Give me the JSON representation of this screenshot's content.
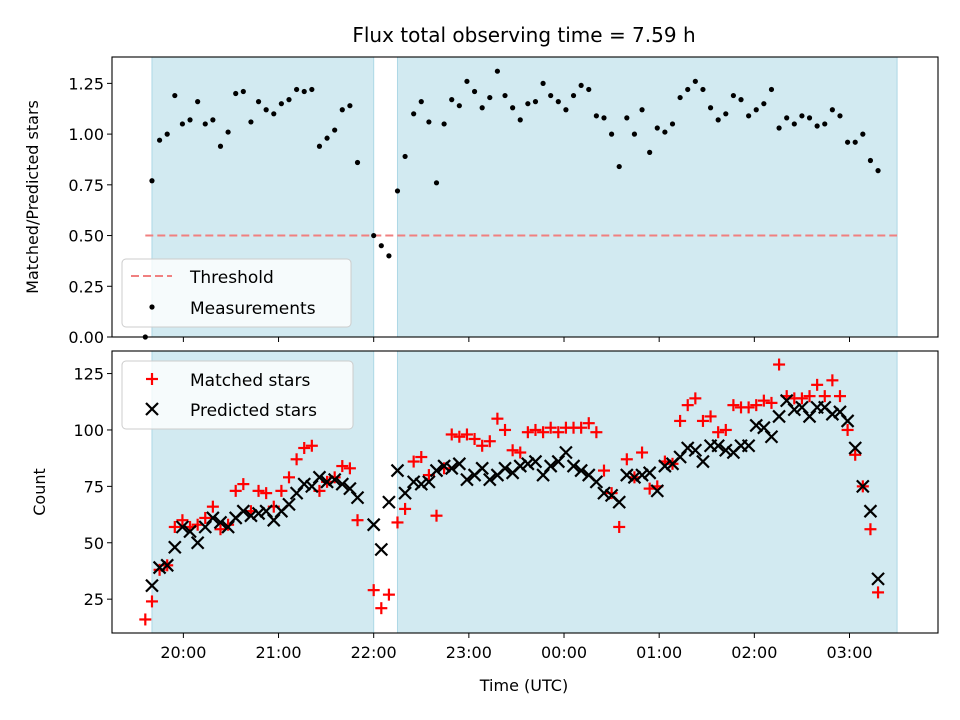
{
  "chart_data": {
    "title": "Flux total observing time = 7.59 h",
    "xlabel": "Time (UTC)",
    "x_ticks": [
      "20:00",
      "21:00",
      "22:00",
      "23:00",
      "00:00",
      "01:00",
      "02:00",
      "03:00"
    ],
    "x_tick_hours": [
      20,
      21,
      22,
      23,
      24,
      25,
      26,
      27
    ],
    "xlim_hours": [
      19.25,
      27.93
    ],
    "observing_windows_hours": [
      [
        19.67,
        22.0
      ],
      [
        22.25,
        27.5
      ]
    ],
    "window_color": "#add8e6",
    "top": {
      "type": "scatter",
      "ylabel": "Matched/Predicted stars",
      "ylim": [
        0,
        1.38
      ],
      "y_ticks": [
        0.0,
        0.25,
        0.5,
        0.75,
        1.0,
        1.25
      ],
      "y_tick_labels": [
        "0.00",
        "0.25",
        "0.50",
        "0.75",
        "1.00",
        "1.25"
      ],
      "threshold": {
        "name": "Threshold",
        "value": 0.5,
        "x_range_hours": [
          19.6,
          27.5
        ],
        "color": "#f08080"
      },
      "measurements_name": "Measurements",
      "measurements_color": "#000000",
      "measurements": [
        [
          19.6,
          0.0
        ],
        [
          19.67,
          0.77
        ],
        [
          19.75,
          0.97
        ],
        [
          19.83,
          1.0
        ],
        [
          19.91,
          1.19
        ],
        [
          19.99,
          1.05
        ],
        [
          20.07,
          1.07
        ],
        [
          20.15,
          1.16
        ],
        [
          20.23,
          1.05
        ],
        [
          20.31,
          1.07
        ],
        [
          20.39,
          0.94
        ],
        [
          20.47,
          1.01
        ],
        [
          20.55,
          1.2
        ],
        [
          20.63,
          1.21
        ],
        [
          20.71,
          1.06
        ],
        [
          20.79,
          1.16
        ],
        [
          20.87,
          1.12
        ],
        [
          20.95,
          1.1
        ],
        [
          21.03,
          1.15
        ],
        [
          21.11,
          1.17
        ],
        [
          21.19,
          1.22
        ],
        [
          21.27,
          1.21
        ],
        [
          21.35,
          1.22
        ],
        [
          21.43,
          0.94
        ],
        [
          21.51,
          0.98
        ],
        [
          21.59,
          1.02
        ],
        [
          21.67,
          1.12
        ],
        [
          21.75,
          1.14
        ],
        [
          21.83,
          0.86
        ],
        [
          22.0,
          0.5
        ],
        [
          22.08,
          0.45
        ],
        [
          22.16,
          0.4
        ],
        [
          22.25,
          0.72
        ],
        [
          22.33,
          0.89
        ],
        [
          22.42,
          1.1
        ],
        [
          22.5,
          1.16
        ],
        [
          22.58,
          1.06
        ],
        [
          22.66,
          0.76
        ],
        [
          22.74,
          1.05
        ],
        [
          22.82,
          1.17
        ],
        [
          22.9,
          1.14
        ],
        [
          22.98,
          1.26
        ],
        [
          23.06,
          1.21
        ],
        [
          23.14,
          1.13
        ],
        [
          23.22,
          1.18
        ],
        [
          23.3,
          1.31
        ],
        [
          23.38,
          1.19
        ],
        [
          23.46,
          1.13
        ],
        [
          23.54,
          1.07
        ],
        [
          23.62,
          1.15
        ],
        [
          23.7,
          1.16
        ],
        [
          23.78,
          1.25
        ],
        [
          23.86,
          1.19
        ],
        [
          23.94,
          1.16
        ],
        [
          24.02,
          1.12
        ],
        [
          24.1,
          1.19
        ],
        [
          24.18,
          1.24
        ],
        [
          24.26,
          1.22
        ],
        [
          24.34,
          1.09
        ],
        [
          24.42,
          1.08
        ],
        [
          24.5,
          1.0
        ],
        [
          24.58,
          0.84
        ],
        [
          24.66,
          1.08
        ],
        [
          24.74,
          1.0
        ],
        [
          24.82,
          1.12
        ],
        [
          24.9,
          0.91
        ],
        [
          24.98,
          1.03
        ],
        [
          25.06,
          1.01
        ],
        [
          25.14,
          1.05
        ],
        [
          25.22,
          1.18
        ],
        [
          25.3,
          1.22
        ],
        [
          25.38,
          1.26
        ],
        [
          25.46,
          1.22
        ],
        [
          25.54,
          1.13
        ],
        [
          25.62,
          1.07
        ],
        [
          25.7,
          1.1
        ],
        [
          25.78,
          1.19
        ],
        [
          25.86,
          1.17
        ],
        [
          25.94,
          1.09
        ],
        [
          26.02,
          1.12
        ],
        [
          26.1,
          1.15
        ],
        [
          26.18,
          1.22
        ],
        [
          26.26,
          1.03
        ],
        [
          26.34,
          1.08
        ],
        [
          26.42,
          1.05
        ],
        [
          26.5,
          1.09
        ],
        [
          26.58,
          1.08
        ],
        [
          26.66,
          1.04
        ],
        [
          26.74,
          1.05
        ],
        [
          26.82,
          1.12
        ],
        [
          26.9,
          1.09
        ],
        [
          26.98,
          0.96
        ],
        [
          27.06,
          0.96
        ],
        [
          27.14,
          1.0
        ],
        [
          27.22,
          0.87
        ],
        [
          27.3,
          0.82
        ]
      ]
    },
    "bottom": {
      "type": "scatter",
      "ylabel": "Count",
      "ylim": [
        10,
        135
      ],
      "y_ticks": [
        25,
        50,
        75,
        100,
        125
      ],
      "y_tick_labels": [
        "25",
        "50",
        "75",
        "100",
        "125"
      ],
      "series": [
        {
          "name": "Matched stars",
          "marker": "plus",
          "color": "#ff0000",
          "points": [
            [
              19.6,
              16
            ],
            [
              19.67,
              24
            ],
            [
              19.75,
              38
            ],
            [
              19.83,
              40
            ],
            [
              19.91,
              57
            ],
            [
              19.99,
              60
            ],
            [
              20.07,
              57
            ],
            [
              20.15,
              58
            ],
            [
              20.23,
              61
            ],
            [
              20.31,
              66
            ],
            [
              20.39,
              56
            ],
            [
              20.47,
              58
            ],
            [
              20.55,
              73
            ],
            [
              20.63,
              76
            ],
            [
              20.71,
              64
            ],
            [
              20.79,
              73
            ],
            [
              20.87,
              72
            ],
            [
              20.95,
              66
            ],
            [
              21.03,
              73
            ],
            [
              21.11,
              79
            ],
            [
              21.19,
              87
            ],
            [
              21.27,
              92
            ],
            [
              21.35,
              93
            ],
            [
              21.43,
              73
            ],
            [
              21.51,
              77
            ],
            [
              21.59,
              79
            ],
            [
              21.67,
              84
            ],
            [
              21.75,
              83
            ],
            [
              21.83,
              60
            ],
            [
              22.0,
              29
            ],
            [
              22.08,
              21
            ],
            [
              22.16,
              27
            ],
            [
              22.25,
              59
            ],
            [
              22.33,
              65
            ],
            [
              22.42,
              86
            ],
            [
              22.5,
              88
            ],
            [
              22.58,
              80
            ],
            [
              22.66,
              62
            ],
            [
              22.74,
              83
            ],
            [
              22.82,
              98
            ],
            [
              22.9,
              97
            ],
            [
              22.98,
              98
            ],
            [
              23.06,
              96
            ],
            [
              23.14,
              93
            ],
            [
              23.22,
              95
            ],
            [
              23.3,
              105
            ],
            [
              23.38,
              100
            ],
            [
              23.46,
              91
            ],
            [
              23.54,
              90
            ],
            [
              23.62,
              99
            ],
            [
              23.7,
              100
            ],
            [
              23.78,
              99
            ],
            [
              23.86,
              101
            ],
            [
              23.94,
              99
            ],
            [
              24.02,
              101
            ],
            [
              24.1,
              101
            ],
            [
              24.18,
              101
            ],
            [
              24.26,
              103
            ],
            [
              24.34,
              99
            ],
            [
              24.42,
              82
            ],
            [
              24.5,
              72
            ],
            [
              24.58,
              57
            ],
            [
              24.66,
              87
            ],
            [
              24.74,
              79
            ],
            [
              24.82,
              90
            ],
            [
              24.9,
              74
            ],
            [
              24.98,
              75
            ],
            [
              25.06,
              86
            ],
            [
              25.14,
              85
            ],
            [
              25.22,
              104
            ],
            [
              25.3,
              111
            ],
            [
              25.38,
              114
            ],
            [
              25.46,
              104
            ],
            [
              25.54,
              106
            ],
            [
              25.62,
              99
            ],
            [
              25.7,
              100
            ],
            [
              25.78,
              111
            ],
            [
              25.86,
              110
            ],
            [
              25.94,
              110
            ],
            [
              26.02,
              111
            ],
            [
              26.1,
              113
            ],
            [
              26.18,
              112
            ],
            [
              26.26,
              129
            ],
            [
              26.34,
              115
            ],
            [
              26.42,
              114
            ],
            [
              26.5,
              114
            ],
            [
              26.58,
              115
            ],
            [
              26.66,
              120
            ],
            [
              26.74,
              115
            ],
            [
              26.82,
              122
            ],
            [
              26.9,
              115
            ],
            [
              26.98,
              100
            ],
            [
              27.06,
              89
            ],
            [
              27.14,
              75
            ],
            [
              27.22,
              56
            ],
            [
              27.3,
              28
            ]
          ]
        },
        {
          "name": "Predicted stars",
          "marker": "x",
          "color": "#000000",
          "points": [
            [
              19.67,
              31
            ],
            [
              19.75,
              39
            ],
            [
              19.83,
              40
            ],
            [
              19.91,
              48
            ],
            [
              19.99,
              57
            ],
            [
              20.07,
              55
            ],
            [
              20.15,
              50
            ],
            [
              20.23,
              57
            ],
            [
              20.31,
              61
            ],
            [
              20.39,
              59
            ],
            [
              20.47,
              57
            ],
            [
              20.55,
              61
            ],
            [
              20.63,
              64
            ],
            [
              20.71,
              62
            ],
            [
              20.79,
              63
            ],
            [
              20.87,
              64
            ],
            [
              20.95,
              60
            ],
            [
              21.03,
              64
            ],
            [
              21.11,
              67
            ],
            [
              21.19,
              72
            ],
            [
              21.27,
              76
            ],
            [
              21.35,
              75
            ],
            [
              21.43,
              79
            ],
            [
              21.51,
              77
            ],
            [
              21.59,
              78
            ],
            [
              21.67,
              76
            ],
            [
              21.75,
              74
            ],
            [
              21.83,
              70
            ],
            [
              22.0,
              58
            ],
            [
              22.08,
              47
            ],
            [
              22.16,
              68
            ],
            [
              22.25,
              82
            ],
            [
              22.33,
              72
            ],
            [
              22.42,
              77
            ],
            [
              22.5,
              76
            ],
            [
              22.58,
              77
            ],
            [
              22.66,
              82
            ],
            [
              22.74,
              84
            ],
            [
              22.82,
              83
            ],
            [
              22.9,
              85
            ],
            [
              22.98,
              78
            ],
            [
              23.06,
              80
            ],
            [
              23.14,
              83
            ],
            [
              23.22,
              78
            ],
            [
              23.3,
              80
            ],
            [
              23.38,
              83
            ],
            [
              23.46,
              81
            ],
            [
              23.54,
              84
            ],
            [
              23.62,
              85
            ],
            [
              23.7,
              86
            ],
            [
              23.78,
              80
            ],
            [
              23.86,
              84
            ],
            [
              23.94,
              86
            ],
            [
              24.02,
              90
            ],
            [
              24.1,
              84
            ],
            [
              24.18,
              82
            ],
            [
              24.26,
              80
            ],
            [
              24.34,
              77
            ],
            [
              24.42,
              72
            ],
            [
              24.5,
              71
            ],
            [
              24.58,
              68
            ],
            [
              24.66,
              80
            ],
            [
              24.74,
              79
            ],
            [
              24.82,
              80
            ],
            [
              24.9,
              81
            ],
            [
              24.98,
              73
            ],
            [
              25.06,
              84
            ],
            [
              25.14,
              85
            ],
            [
              25.22,
              88
            ],
            [
              25.3,
              92
            ],
            [
              25.38,
              91
            ],
            [
              25.46,
              86
            ],
            [
              25.54,
              93
            ],
            [
              25.62,
              93
            ],
            [
              25.7,
              91
            ],
            [
              25.78,
              90
            ],
            [
              25.86,
              93
            ],
            [
              25.94,
              93
            ],
            [
              26.02,
              102
            ],
            [
              26.1,
              101
            ],
            [
              26.18,
              97
            ],
            [
              26.26,
              106
            ],
            [
              26.34,
              113
            ],
            [
              26.42,
              109
            ],
            [
              26.5,
              110
            ],
            [
              26.58,
              106
            ],
            [
              26.66,
              110
            ],
            [
              26.74,
              110
            ],
            [
              26.82,
              107
            ],
            [
              26.9,
              108
            ],
            [
              26.98,
              104
            ],
            [
              27.06,
              92
            ],
            [
              27.14,
              75
            ],
            [
              27.22,
              64
            ],
            [
              27.3,
              34
            ]
          ]
        }
      ]
    }
  }
}
